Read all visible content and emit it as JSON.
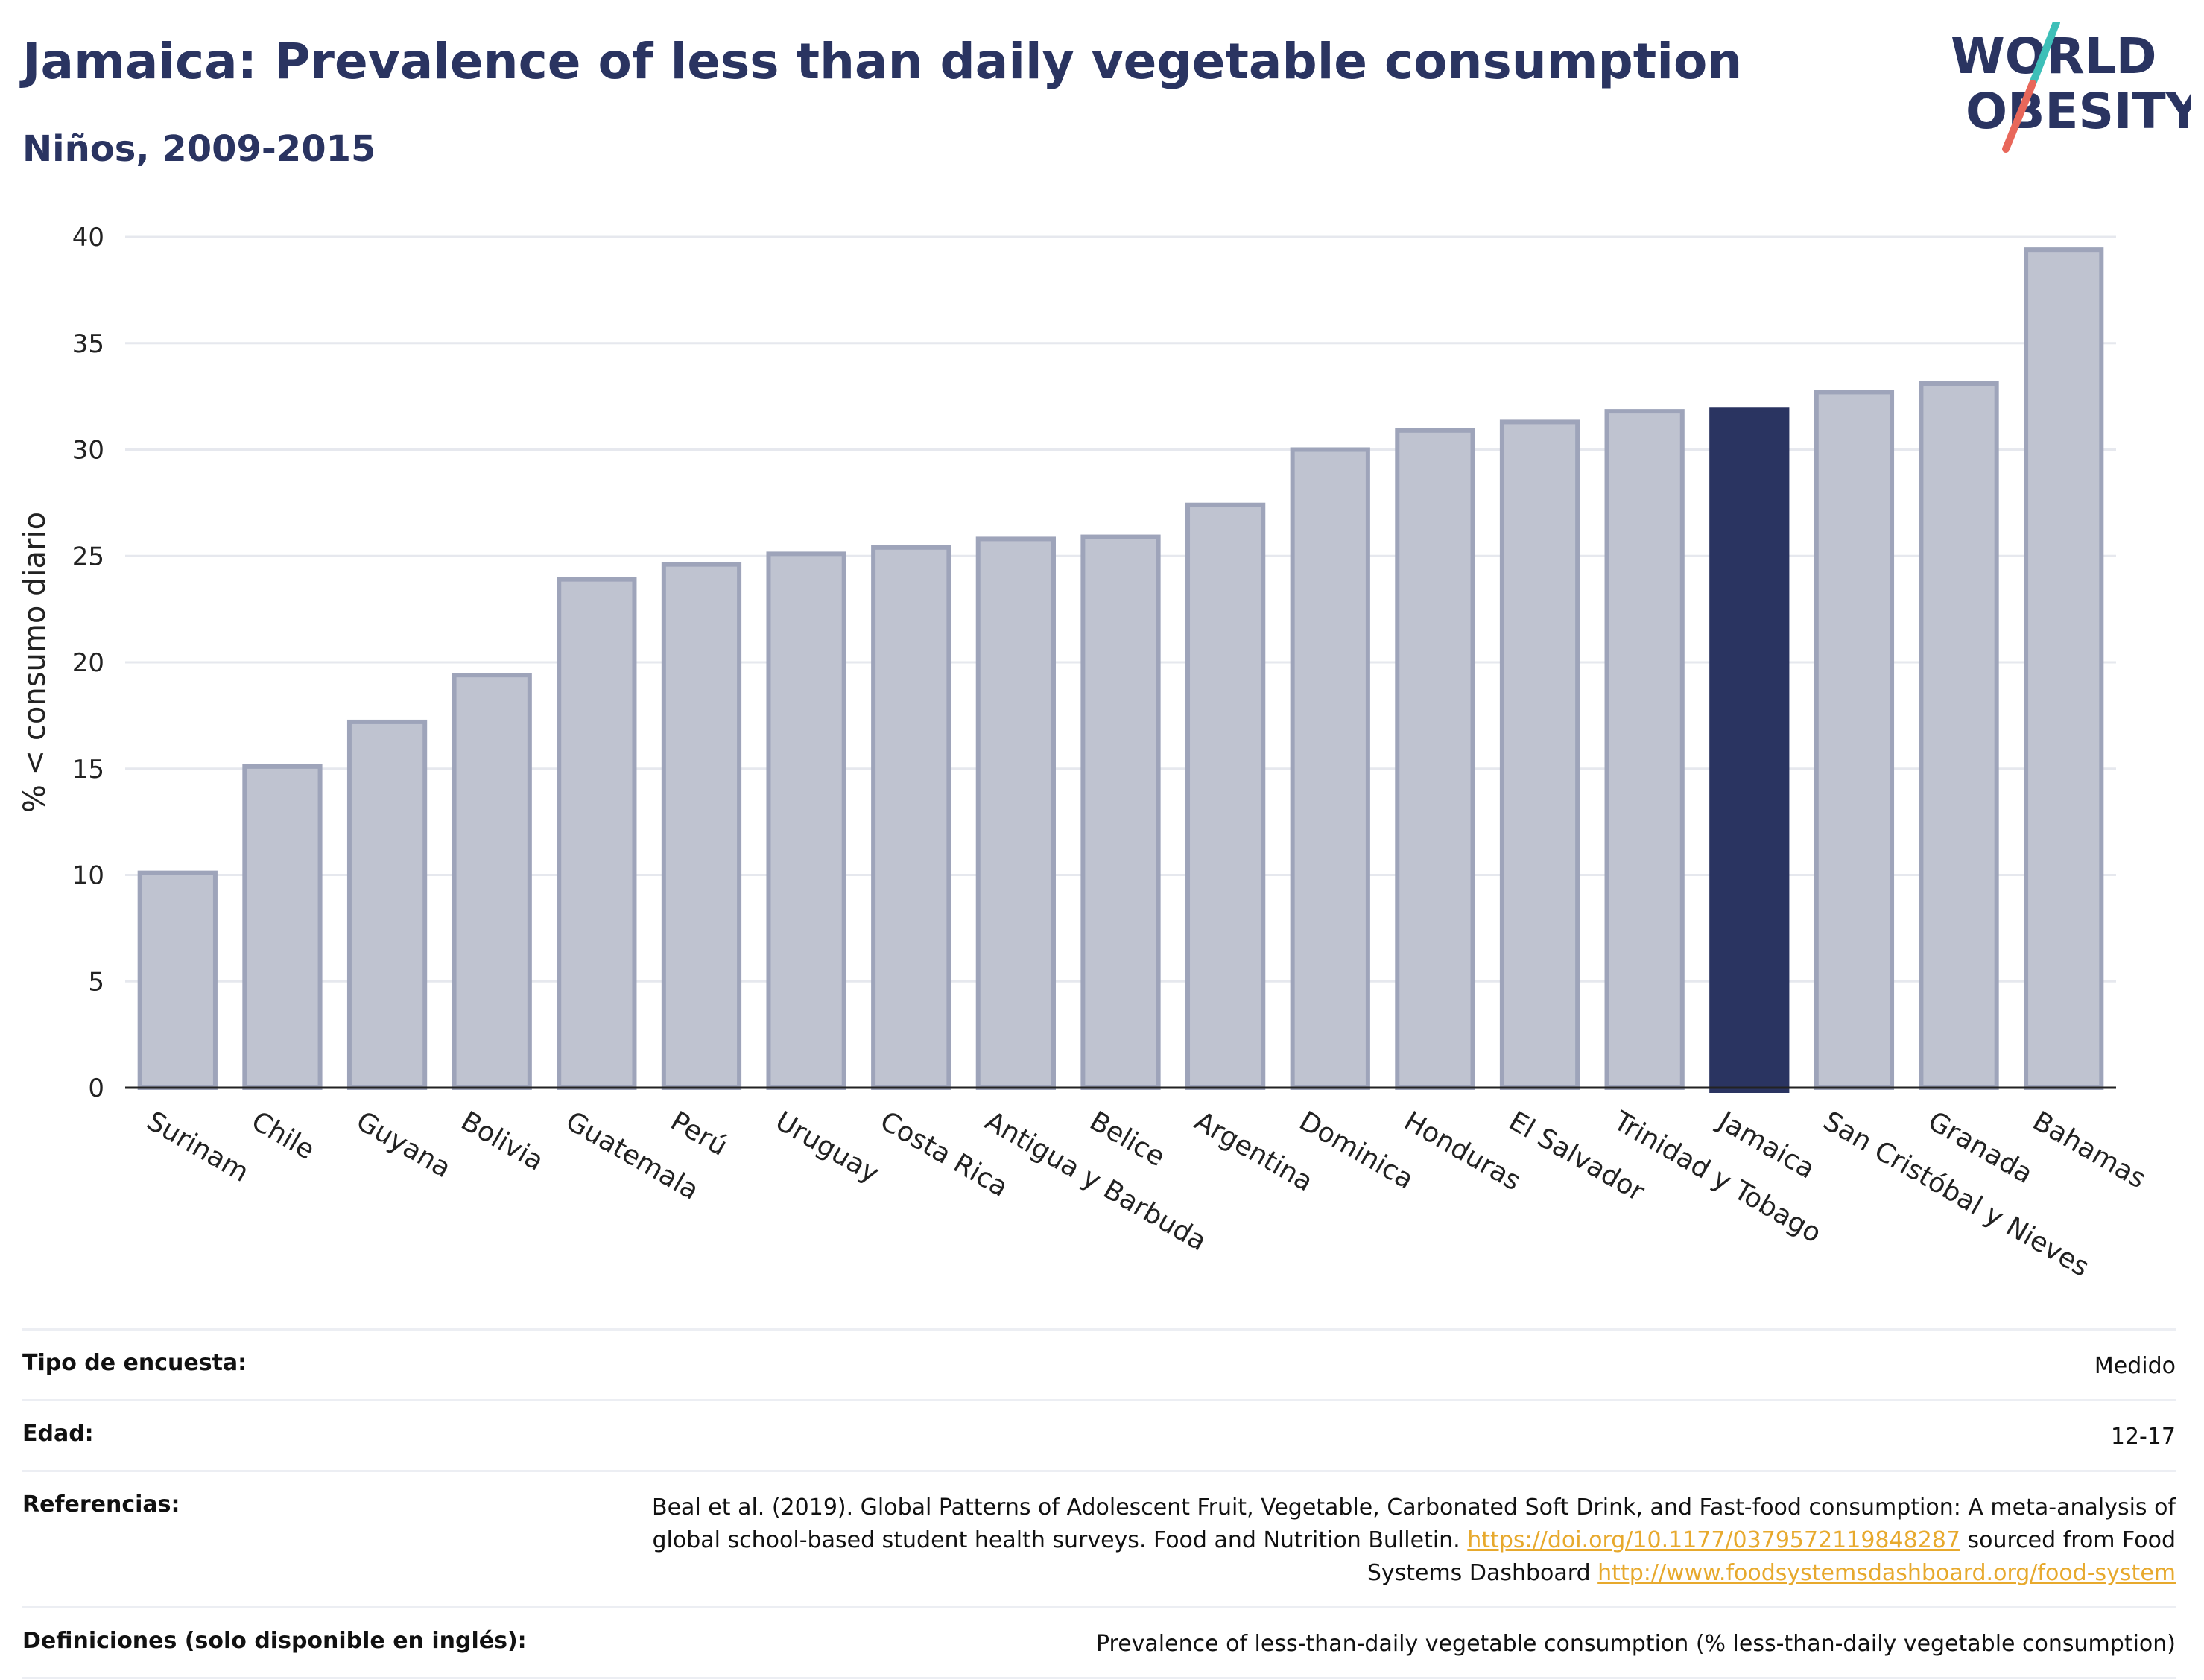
{
  "header": {
    "title": "Jamaica: Prevalence of less than daily vegetable consumption",
    "subtitle": "Niños, 2009-2015"
  },
  "logo": {
    "line1": "WORLD",
    "line2": "OBESITY",
    "colors": {
      "text": "#2a3461",
      "slash_top": "#3dbfb8",
      "slash_bottom": "#e8675a"
    }
  },
  "colors": {
    "highlight_bar": "#2a3461",
    "other_bar_fill": "#bfc3d0",
    "other_bar_stroke": "#9ea4ba",
    "gridline": "#e6e8ee",
    "axis": "#222222"
  },
  "chart_data": {
    "type": "bar",
    "title": "Jamaica: Prevalence of less than daily vegetable consumption",
    "subtitle": "Niños, 2009-2015",
    "xlabel": "",
    "ylabel": "% < consumo diario",
    "ylim": [
      0,
      40
    ],
    "yticks": [
      0,
      5,
      10,
      15,
      20,
      25,
      30,
      35,
      40
    ],
    "grid": true,
    "highlight": "Jamaica",
    "categories": [
      "Surinam",
      "Chile",
      "Guyana",
      "Bolivia",
      "Guatemala",
      "Perú",
      "Uruguay",
      "Costa Rica",
      "Antigua y Barbuda",
      "Belice",
      "Argentina",
      "Dominica",
      "Honduras",
      "El Salvador",
      "Trinidad y Tobago",
      "Jamaica",
      "San Cristóbal y Nieves",
      "Granada",
      "Bahamas"
    ],
    "values": [
      10.1,
      15.1,
      17.2,
      19.4,
      23.9,
      24.6,
      25.1,
      25.4,
      25.8,
      25.9,
      27.4,
      30.0,
      30.9,
      31.3,
      31.8,
      31.9,
      32.7,
      33.1,
      39.4
    ]
  },
  "info": {
    "rows": [
      {
        "label": "Tipo de encuesta:",
        "value": "Medido"
      },
      {
        "label": "Edad:",
        "value": "12-17"
      },
      {
        "label": "Referencias:",
        "value_pre": "Beal et al. (2019). Global Patterns of Adolescent Fruit, Vegetable, Carbonated Soft Drink, and Fast-food consumption: A meta-analysis of global school-based student health surveys. Food and Nutrition Bulletin.",
        "link1": "https://doi.org/10.1177/0379572119848287",
        "value_mid": "sourced from Food Systems Dashboard",
        "link2": "http://www.foodsystemsdashboard.org/food-system"
      },
      {
        "label": "Definiciones (solo disponible en inglés):",
        "value": "Prevalence of less-than-daily vegetable consumption (% less-than-daily vegetable consumption)"
      }
    ]
  }
}
